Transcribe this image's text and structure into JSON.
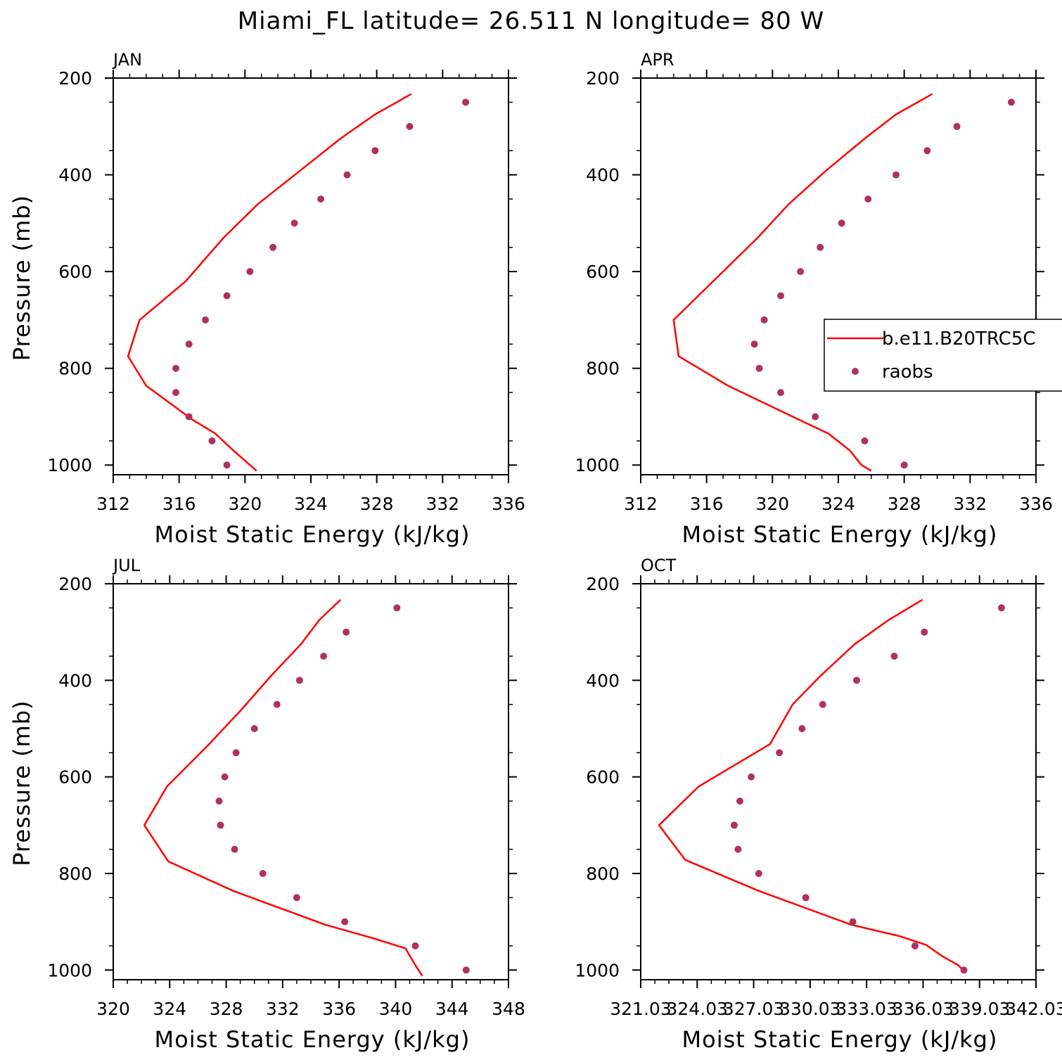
{
  "title": "Miami_FL  latitude= 26.511 N longitude= 80 W",
  "colors": {
    "model": "#ff0000",
    "obs": "#b03060"
  },
  "legend": {
    "model_label": "b.e11.B20TRC5C",
    "obs_label": "raobs"
  },
  "chart_data": [
    {
      "type": "scatter",
      "panel_label": "JAN",
      "xlabel": "Moist Static Energy (kJ/kg)",
      "ylabel": "Pressure (mb)",
      "xlim": [
        312,
        336
      ],
      "ylim": [
        200,
        1020
      ],
      "x_ticks": [
        "312",
        "316",
        "320",
        "324",
        "328",
        "332",
        "336"
      ],
      "y_ticks": [
        "200",
        "400",
        "600",
        "800",
        "1000"
      ],
      "series": [
        {
          "kind": "line",
          "points": [
            [
              330.1,
              233
            ],
            [
              327.9,
              275
            ],
            [
              325.8,
              325
            ],
            [
              323.4,
              390
            ],
            [
              320.8,
              460
            ],
            [
              318.7,
              530
            ],
            [
              316.4,
              620
            ],
            [
              313.6,
              700
            ],
            [
              312.9,
              775
            ],
            [
              314.0,
              836
            ],
            [
              316.8,
              906
            ],
            [
              318.2,
              935
            ],
            [
              319.3,
              970
            ],
            [
              320.3,
              1000
            ],
            [
              320.7,
              1012
            ]
          ]
        },
        {
          "kind": "scatter",
          "points": [
            [
              333.4,
              250
            ],
            [
              330.0,
              300
            ],
            [
              327.9,
              350
            ],
            [
              326.2,
              400
            ],
            [
              324.6,
              450
            ],
            [
              323.0,
              500
            ],
            [
              321.7,
              550
            ],
            [
              320.3,
              600
            ],
            [
              318.9,
              650
            ],
            [
              317.6,
              700
            ],
            [
              316.6,
              750
            ],
            [
              315.8,
              800
            ],
            [
              315.8,
              850
            ],
            [
              316.6,
              900
            ],
            [
              318.0,
              950
            ],
            [
              318.9,
              1000
            ]
          ]
        }
      ]
    },
    {
      "type": "scatter",
      "panel_label": "APR",
      "xlabel": "Moist Static Energy (kJ/kg)",
      "ylabel": "",
      "xlim": [
        312,
        336
      ],
      "ylim": [
        200,
        1020
      ],
      "x_ticks": [
        "312",
        "316",
        "320",
        "324",
        "328",
        "332",
        "336"
      ],
      "y_ticks": [
        "200",
        "400",
        "600",
        "800",
        "1000"
      ],
      "legend_position": "right",
      "series": [
        {
          "kind": "line",
          "points": [
            [
              329.7,
              233
            ],
            [
              327.5,
              275
            ],
            [
              325.6,
              325
            ],
            [
              323.3,
              390
            ],
            [
              321.0,
              460
            ],
            [
              319.1,
              530
            ],
            [
              316.4,
              620
            ],
            [
              314.0,
              700
            ],
            [
              314.3,
              775
            ],
            [
              317.3,
              836
            ],
            [
              321.6,
              906
            ],
            [
              323.4,
              935
            ],
            [
              324.7,
              970
            ],
            [
              325.4,
              1000
            ],
            [
              326.0,
              1012
            ]
          ]
        },
        {
          "kind": "scatter",
          "points": [
            [
              334.5,
              250
            ],
            [
              331.2,
              300
            ],
            [
              329.4,
              350
            ],
            [
              327.5,
              400
            ],
            [
              325.8,
              450
            ],
            [
              324.2,
              500
            ],
            [
              322.9,
              550
            ],
            [
              321.7,
              600
            ],
            [
              320.5,
              650
            ],
            [
              319.5,
              700
            ],
            [
              318.9,
              750
            ],
            [
              319.2,
              800
            ],
            [
              320.5,
              850
            ],
            [
              322.6,
              900
            ],
            [
              325.6,
              950
            ],
            [
              328.0,
              1000
            ]
          ]
        }
      ]
    },
    {
      "type": "scatter",
      "panel_label": "JUL",
      "xlabel": "Moist Static Energy (kJ/kg)",
      "ylabel": "Pressure (mb)",
      "xlim": [
        320,
        348
      ],
      "ylim": [
        200,
        1020
      ],
      "x_ticks": [
        "320",
        "324",
        "328",
        "332",
        "336",
        "340",
        "344",
        "348"
      ],
      "y_ticks": [
        "200",
        "400",
        "600",
        "800",
        "1000"
      ],
      "series": [
        {
          "kind": "line",
          "points": [
            [
              336.1,
              233
            ],
            [
              334.6,
              275
            ],
            [
              333.3,
              325
            ],
            [
              331.2,
              390
            ],
            [
              329.1,
              460
            ],
            [
              326.7,
              535
            ],
            [
              323.8,
              620
            ],
            [
              322.2,
              700
            ],
            [
              323.9,
              775
            ],
            [
              328.5,
              836
            ],
            [
              335.0,
              906
            ],
            [
              338.5,
              935
            ],
            [
              340.7,
              955
            ],
            [
              341.4,
              990
            ],
            [
              341.9,
              1012
            ]
          ]
        },
        {
          "kind": "scatter",
          "points": [
            [
              340.1,
              250
            ],
            [
              336.5,
              300
            ],
            [
              334.9,
              350
            ],
            [
              333.2,
              400
            ],
            [
              331.6,
              450
            ],
            [
              330.0,
              500
            ],
            [
              328.7,
              550
            ],
            [
              327.9,
              600
            ],
            [
              327.5,
              650
            ],
            [
              327.6,
              700
            ],
            [
              328.6,
              750
            ],
            [
              330.6,
              800
            ],
            [
              333.0,
              850
            ],
            [
              336.4,
              900
            ],
            [
              341.4,
              950
            ],
            [
              345.0,
              1000
            ]
          ]
        }
      ]
    },
    {
      "type": "scatter",
      "panel_label": "OCT",
      "xlabel": "Moist Static Energy (kJ/kg)",
      "ylabel": "",
      "xlim": [
        321.03,
        342.03
      ],
      "ylim": [
        200,
        1020
      ],
      "x_ticks": [
        "321.03",
        "324.03",
        "327.03",
        "330.03",
        "333.03",
        "336.03",
        "339.03",
        "342.03"
      ],
      "y_ticks": [
        "200",
        "400",
        "600",
        "800",
        "1000"
      ],
      "series": [
        {
          "kind": "line",
          "points": [
            [
              336.0,
              233
            ],
            [
              334.2,
              275
            ],
            [
              332.4,
              325
            ],
            [
              330.6,
              390
            ],
            [
              329.1,
              450
            ],
            [
              327.9,
              532
            ],
            [
              324.1,
              620
            ],
            [
              322.0,
              700
            ],
            [
              323.4,
              772
            ],
            [
              327.3,
              836
            ],
            [
              332.2,
              906
            ],
            [
              334.8,
              930
            ],
            [
              336.2,
              948
            ],
            [
              337.0,
              970
            ],
            [
              337.9,
              990
            ],
            [
              338.3,
              1006
            ]
          ]
        },
        {
          "kind": "scatter",
          "points": [
            [
              340.2,
              250
            ],
            [
              336.1,
              300
            ],
            [
              334.5,
              350
            ],
            [
              332.5,
              400
            ],
            [
              330.7,
              450
            ],
            [
              329.6,
              500
            ],
            [
              328.4,
              550
            ],
            [
              326.9,
              600
            ],
            [
              326.3,
              650
            ],
            [
              326.0,
              700
            ],
            [
              326.2,
              750
            ],
            [
              327.3,
              800
            ],
            [
              329.8,
              850
            ],
            [
              332.3,
              900
            ],
            [
              335.6,
              950
            ],
            [
              338.2,
              1000
            ]
          ]
        }
      ]
    }
  ]
}
